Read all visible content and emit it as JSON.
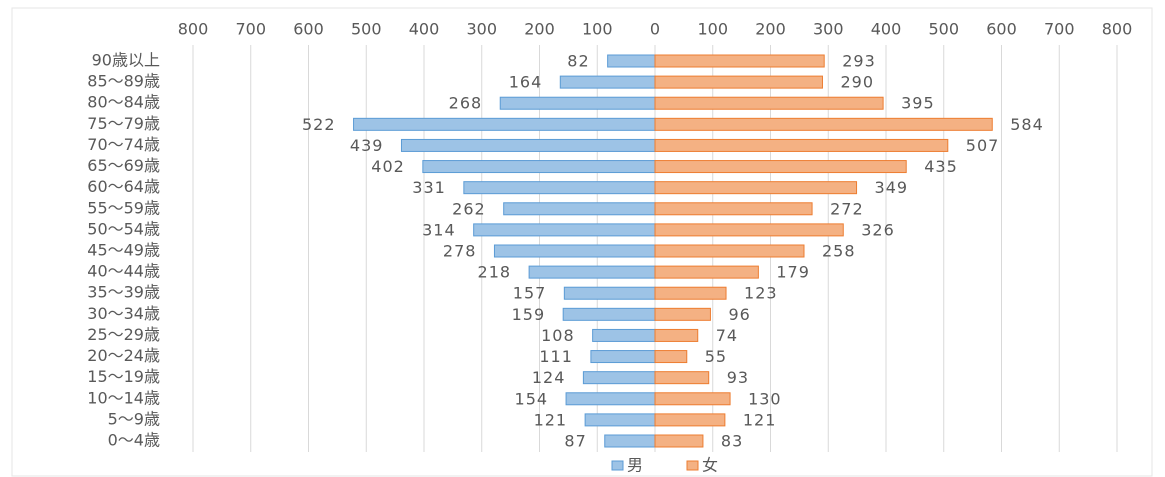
{
  "chart_data": {
    "type": "pyramid",
    "categories": [
      "90歳以上",
      "85～89歳",
      "80～84歳",
      "75～79歳",
      "70～74歳",
      "65～69歳",
      "60～64歳",
      "55～59歳",
      "50～54歳",
      "45～49歳",
      "40～44歳",
      "35～39歳",
      "30～34歳",
      "25～29歳",
      "20～24歳",
      "15～19歳",
      "10～14歳",
      "5～9歳",
      "0～4歳"
    ],
    "series": [
      {
        "name": "男",
        "color": "#9dc3e6",
        "side": "left",
        "values": [
          82,
          164,
          268,
          522,
          439,
          402,
          331,
          262,
          314,
          278,
          218,
          157,
          159,
          108,
          111,
          124,
          154,
          121,
          87
        ]
      },
      {
        "name": "女",
        "color": "#f4b183",
        "side": "right",
        "values": [
          293,
          290,
          395,
          584,
          507,
          435,
          349,
          272,
          326,
          258,
          179,
          123,
          96,
          74,
          55,
          93,
          130,
          121,
          83
        ]
      }
    ],
    "xlim": [
      0,
      800
    ],
    "xticks": [
      0,
      100,
      200,
      300,
      400,
      500,
      600,
      700,
      800
    ],
    "grid": true
  }
}
